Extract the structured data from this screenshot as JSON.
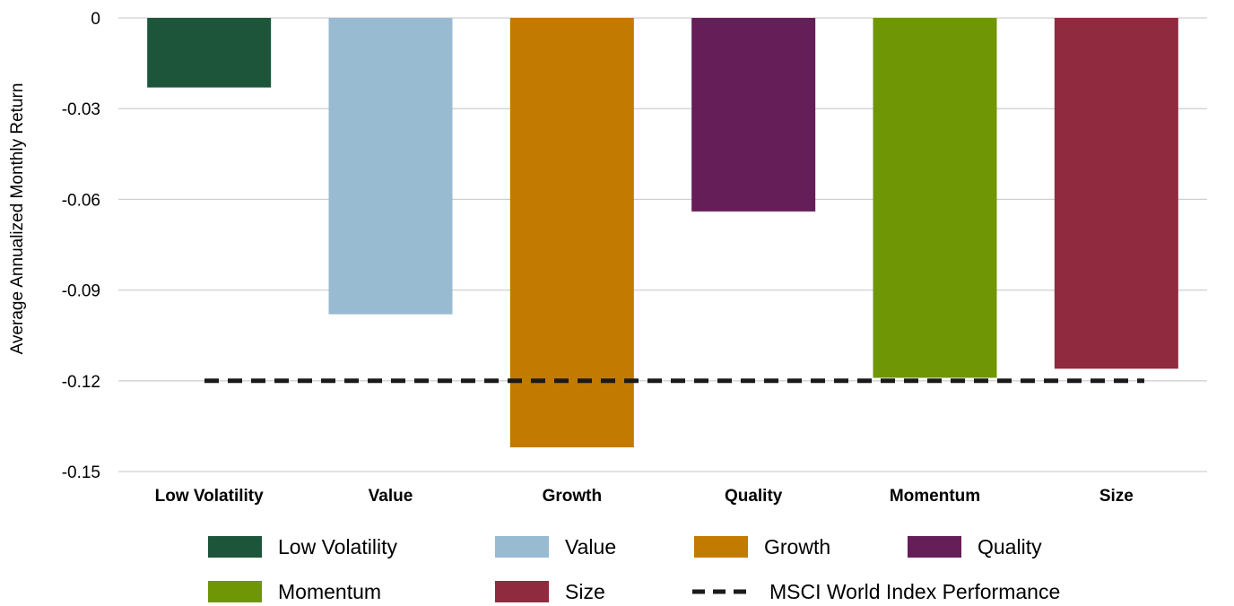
{
  "chart_data": {
    "type": "bar",
    "title": "",
    "xlabel": "",
    "ylabel": "Average Annualized Monthly Return",
    "ylim": [
      -0.15,
      0
    ],
    "yticks": [
      0,
      -0.03,
      -0.06,
      -0.09,
      -0.12,
      -0.15
    ],
    "ytick_labels": [
      "0",
      "-0.03",
      "-0.06",
      "-0.09",
      "-0.12",
      "-0.15"
    ],
    "grid": true,
    "legend_position": "bottom",
    "categories": [
      "Low Volatility",
      "Value",
      "Growth",
      "Quality",
      "Momentum",
      "Size"
    ],
    "values": [
      -0.023,
      -0.098,
      -0.142,
      -0.064,
      -0.119,
      -0.116
    ],
    "colors": [
      "#1d553a",
      "#98bbd2",
      "#c27a00",
      "#661e58",
      "#6f9604",
      "#902a3f"
    ],
    "reference_line": {
      "name": "MSCI World Index Performance",
      "value": -0.12,
      "style": "dashed",
      "color": "#1a1a1a"
    },
    "legend": [
      {
        "label": "Low Volatility",
        "color": "#1d553a",
        "kind": "box"
      },
      {
        "label": "Value",
        "color": "#98bbd2",
        "kind": "box"
      },
      {
        "label": "Growth",
        "color": "#c27a00",
        "kind": "box"
      },
      {
        "label": "Quality",
        "color": "#661e58",
        "kind": "box"
      },
      {
        "label": "Momentum",
        "color": "#6f9604",
        "kind": "box"
      },
      {
        "label": "Size",
        "color": "#902a3f",
        "kind": "box"
      },
      {
        "label": "MSCI World Index Performance",
        "color": "#1a1a1a",
        "kind": "dash"
      }
    ]
  }
}
